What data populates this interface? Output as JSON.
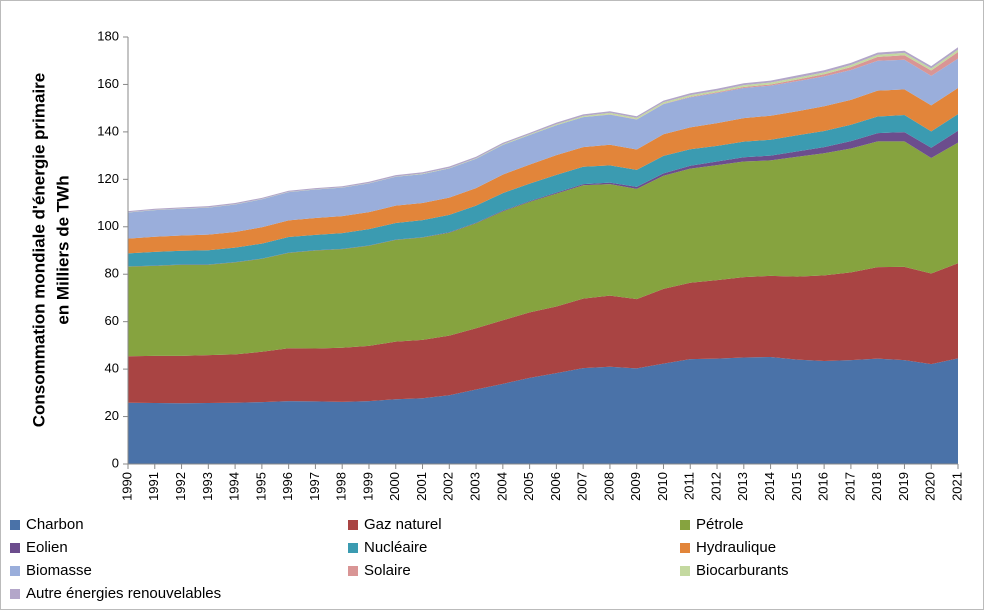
{
  "chart_data": {
    "type": "stacked_area",
    "ylabel": [
      "Consommation mondiale d'énergie primaire",
      "en Milliers de TWh"
    ],
    "categories": [
      "1990",
      "1991",
      "1992",
      "1993",
      "1994",
      "1995",
      "1996",
      "1997",
      "1998",
      "1999",
      "2000",
      "2001",
      "2002",
      "2003",
      "2004",
      "2005",
      "2006",
      "2007",
      "2008",
      "2009",
      "2010",
      "2011",
      "2012",
      "2013",
      "2014",
      "2015",
      "2016",
      "2017",
      "2018",
      "2019",
      "2020",
      "2021"
    ],
    "ylim": [
      0,
      180
    ],
    "yticks": [
      0,
      20,
      40,
      60,
      80,
      100,
      120,
      140,
      160,
      180
    ],
    "series": [
      {
        "name": "Charbon",
        "color": "#4a72a8",
        "values": [
          25.8,
          25.7,
          25.6,
          25.7,
          25.8,
          26.1,
          26.5,
          26.4,
          26.2,
          26.5,
          27.3,
          27.7,
          29.0,
          31.4,
          33.8,
          36.3,
          38.3,
          40.4,
          41.0,
          40.3,
          42.3,
          44.2,
          44.4,
          44.9,
          45.1,
          44.0,
          43.4,
          43.8,
          44.4,
          43.8,
          42.1,
          44.5
        ]
      },
      {
        "name": "Gaz naturel",
        "color": "#a94443",
        "values": [
          19.6,
          19.9,
          20.0,
          20.2,
          20.4,
          21.2,
          22.3,
          22.3,
          22.8,
          23.3,
          24.3,
          24.6,
          25.1,
          25.8,
          26.8,
          27.6,
          28.1,
          29.3,
          30.0,
          29.2,
          31.5,
          32.2,
          33.1,
          33.9,
          34.2,
          35.0,
          36.1,
          37.0,
          38.6,
          39.3,
          38.2,
          40.1
        ]
      },
      {
        "name": "Pétrole",
        "color": "#86a33f",
        "values": [
          37.8,
          37.9,
          38.4,
          38.1,
          38.8,
          39.2,
          40.2,
          41.3,
          41.6,
          42.2,
          42.9,
          43.2,
          43.4,
          44.3,
          45.9,
          46.6,
          47.6,
          47.8,
          47.0,
          46.5,
          47.7,
          48.1,
          48.5,
          48.7,
          48.7,
          50.5,
          51.5,
          52.2,
          53.0,
          52.9,
          48.7,
          50.9
        ]
      },
      {
        "name": "Eolien",
        "color": "#6c4d8d",
        "values": [
          0.1,
          0.1,
          0.1,
          0.1,
          0.1,
          0.1,
          0.1,
          0.1,
          0.1,
          0.1,
          0.1,
          0.1,
          0.2,
          0.2,
          0.3,
          0.3,
          0.4,
          0.5,
          0.6,
          0.8,
          1.0,
          1.2,
          1.5,
          1.8,
          2.0,
          2.3,
          2.6,
          3.1,
          3.5,
          3.9,
          4.3,
          5.0
        ]
      },
      {
        "name": "Nucléaire",
        "color": "#3b9bb1",
        "values": [
          5.5,
          5.8,
          5.8,
          6.0,
          6.1,
          6.3,
          6.6,
          6.5,
          6.6,
          6.9,
          7.0,
          7.2,
          7.3,
          7.2,
          7.4,
          7.4,
          7.5,
          7.3,
          7.3,
          7.2,
          7.4,
          7.0,
          6.6,
          6.6,
          6.7,
          6.8,
          6.8,
          6.9,
          7.0,
          7.2,
          6.9,
          7.0
        ]
      },
      {
        "name": "Hydraulique",
        "color": "#e2853a",
        "values": [
          6.2,
          6.4,
          6.4,
          6.6,
          6.6,
          6.9,
          7.0,
          7.1,
          7.2,
          7.2,
          7.3,
          7.2,
          7.3,
          7.4,
          7.8,
          8.0,
          8.3,
          8.3,
          8.7,
          8.6,
          9.1,
          9.2,
          9.6,
          9.9,
          10.1,
          10.1,
          10.4,
          10.5,
          10.9,
          10.8,
          11.0,
          11.0
        ]
      },
      {
        "name": "Biomasse",
        "color": "#9aaedb",
        "values": [
          11.0,
          11.2,
          11.3,
          11.4,
          11.6,
          11.8,
          11.9,
          12.0,
          12.0,
          12.1,
          12.2,
          12.2,
          12.3,
          12.4,
          12.5,
          12.5,
          12.6,
          12.6,
          12.7,
          12.6,
          12.7,
          12.7,
          12.7,
          12.7,
          12.7,
          12.7,
          12.6,
          12.6,
          12.6,
          12.5,
          12.4,
          12.4
        ]
      },
      {
        "name": "Solaire",
        "color": "#d99595",
        "values": [
          0.0,
          0.0,
          0.0,
          0.0,
          0.0,
          0.0,
          0.0,
          0.0,
          0.0,
          0.0,
          0.0,
          0.0,
          0.0,
          0.0,
          0.0,
          0.0,
          0.0,
          0.0,
          0.1,
          0.1,
          0.1,
          0.2,
          0.3,
          0.4,
          0.5,
          0.7,
          0.9,
          1.2,
          1.6,
          1.9,
          2.3,
          2.8
        ]
      },
      {
        "name": "Biocarburants",
        "color": "#c4d9a0",
        "values": [
          0.1,
          0.1,
          0.1,
          0.1,
          0.1,
          0.1,
          0.1,
          0.1,
          0.1,
          0.1,
          0.1,
          0.2,
          0.2,
          0.2,
          0.3,
          0.3,
          0.4,
          0.5,
          0.6,
          0.6,
          0.7,
          0.7,
          0.7,
          0.8,
          0.8,
          0.8,
          0.8,
          0.9,
          0.9,
          1.0,
          0.9,
          1.0
        ]
      },
      {
        "name": "Autre énergies renouvelables",
        "color": "#b3a6c9",
        "values": [
          0.5,
          0.5,
          0.5,
          0.5,
          0.5,
          0.5,
          0.5,
          0.5,
          0.5,
          0.6,
          0.6,
          0.6,
          0.6,
          0.6,
          0.6,
          0.6,
          0.7,
          0.7,
          0.7,
          0.7,
          0.7,
          0.8,
          0.8,
          0.8,
          0.8,
          0.9,
          0.9,
          0.9,
          0.9,
          0.9,
          0.9,
          1.0
        ]
      }
    ]
  }
}
